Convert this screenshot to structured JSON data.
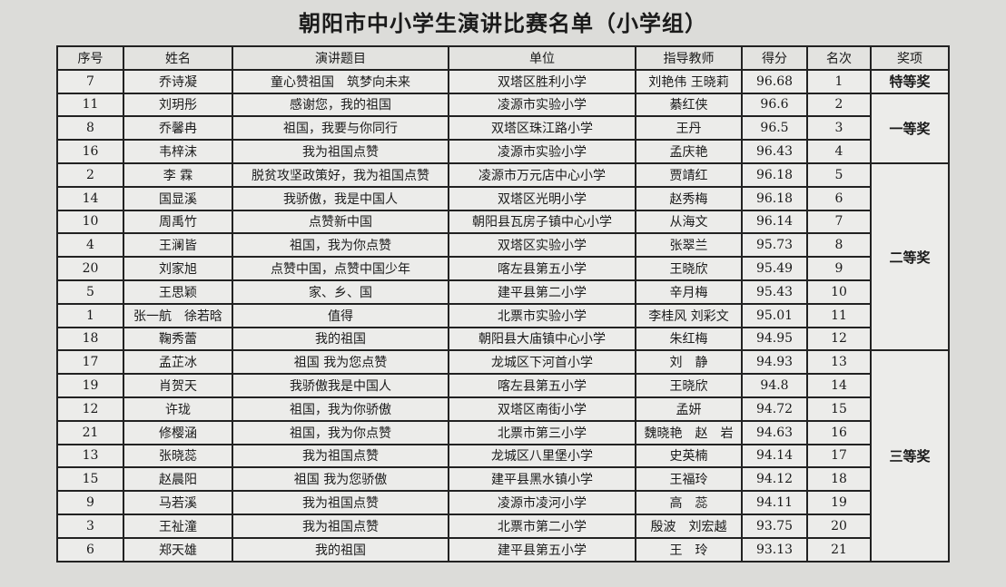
{
  "title": "朝阳市中小学生演讲比赛名单（小学组）",
  "columns": [
    "序号",
    "姓名",
    "演讲题目",
    "单位",
    "指导教师",
    "得分",
    "名次",
    "奖项"
  ],
  "rows": [
    {
      "no": "7",
      "name": "乔诗凝",
      "topic": "童心赞祖国　筑梦向未来",
      "unit": "双塔区胜利小学",
      "teacher": "刘艳伟 王晓莉",
      "score": "96.68",
      "rank": "1"
    },
    {
      "no": "11",
      "name": "刘玥彤",
      "topic": "感谢您，我的祖国",
      "unit": "凌源市实验小学",
      "teacher": "綦红侠",
      "score": "96.6",
      "rank": "2"
    },
    {
      "no": "8",
      "name": "乔馨冉",
      "topic": "祖国，我要与你同行",
      "unit": "双塔区珠江路小学",
      "teacher": "王丹",
      "score": "96.5",
      "rank": "3"
    },
    {
      "no": "16",
      "name": "韦梓沫",
      "topic": "我为祖国点赞",
      "unit": "凌源市实验小学",
      "teacher": "孟庆艳",
      "score": "96.43",
      "rank": "4"
    },
    {
      "no": "2",
      "name": "李 霖",
      "topic": "脱贫攻坚政策好，我为祖国点赞",
      "unit": "凌源市万元店中心小学",
      "teacher": "贾靖红",
      "score": "96.18",
      "rank": "5"
    },
    {
      "no": "14",
      "name": "国显溪",
      "topic": "我骄傲，我是中国人",
      "unit": "双塔区光明小学",
      "teacher": "赵秀梅",
      "score": "96.18",
      "rank": "6"
    },
    {
      "no": "10",
      "name": "周禹竹",
      "topic": "点赞新中国",
      "unit": "朝阳县瓦房子镇中心小学",
      "teacher": "从海文",
      "score": "96.14",
      "rank": "7"
    },
    {
      "no": "4",
      "name": "王澜皆",
      "topic": "祖国，我为你点赞",
      "unit": "双塔区实验小学",
      "teacher": "张翠兰",
      "score": "95.73",
      "rank": "8"
    },
    {
      "no": "20",
      "name": "刘家旭",
      "topic": "点赞中国，点赞中国少年",
      "unit": "喀左县第五小学",
      "teacher": "王晓欣",
      "score": "95.49",
      "rank": "9"
    },
    {
      "no": "5",
      "name": "王思颖",
      "topic": "家、乡、国",
      "unit": "建平县第二小学",
      "teacher": "辛月梅",
      "score": "95.43",
      "rank": "10"
    },
    {
      "no": "1",
      "name": "张一航　徐若晗",
      "topic": "值得",
      "unit": "北票市实验小学",
      "teacher": "李桂风 刘彩文",
      "score": "95.01",
      "rank": "11"
    },
    {
      "no": "18",
      "name": "鞠秀蕾",
      "topic": "我的祖国",
      "unit": "朝阳县大庙镇中心小学",
      "teacher": "朱红梅",
      "score": "94.95",
      "rank": "12"
    },
    {
      "no": "17",
      "name": "孟芷冰",
      "topic": "祖国 我为您点赞",
      "unit": "龙城区下河首小学",
      "teacher": "刘　静",
      "score": "94.93",
      "rank": "13"
    },
    {
      "no": "19",
      "name": "肖贺天",
      "topic": "我骄傲我是中国人",
      "unit": "喀左县第五小学",
      "teacher": "王晓欣",
      "score": "94.8",
      "rank": "14"
    },
    {
      "no": "12",
      "name": "许珑",
      "topic": "祖国，我为你骄傲",
      "unit": "双塔区南街小学",
      "teacher": "孟妍",
      "score": "94.72",
      "rank": "15"
    },
    {
      "no": "21",
      "name": "修樱涵",
      "topic": "祖国，我为你点赞",
      "unit": "北票市第三小学",
      "teacher": "魏晓艳　赵　岩",
      "score": "94.63",
      "rank": "16"
    },
    {
      "no": "13",
      "name": "张晓蕊",
      "topic": "我为祖国点赞",
      "unit": "龙城区八里堡小学",
      "teacher": "史英楠",
      "score": "94.14",
      "rank": "17"
    },
    {
      "no": "15",
      "name": "赵晨阳",
      "topic": "祖国 我为您骄傲",
      "unit": "建平县黑水镇小学",
      "teacher": "王福玲",
      "score": "94.12",
      "rank": "18"
    },
    {
      "no": "9",
      "name": "马若溪",
      "topic": "我为祖国点赞",
      "unit": "凌源市凌河小学",
      "teacher": "高　蕊",
      "score": "94.11",
      "rank": "19"
    },
    {
      "no": "3",
      "name": "王祉潼",
      "topic": "我为祖国点赞",
      "unit": "北票市第二小学",
      "teacher": "殷波　刘宏越",
      "score": "93.75",
      "rank": "20"
    },
    {
      "no": "6",
      "name": "郑天雄",
      "topic": "我的祖国",
      "unit": "建平县第五小学",
      "teacher": "王　玲",
      "score": "93.13",
      "rank": "21"
    }
  ],
  "awards": [
    {
      "label": "特等奖",
      "span": 1
    },
    {
      "label": "一等奖",
      "span": 3
    },
    {
      "label": "二等奖",
      "span": 8
    },
    {
      "label": "三等奖",
      "span": 9
    }
  ]
}
